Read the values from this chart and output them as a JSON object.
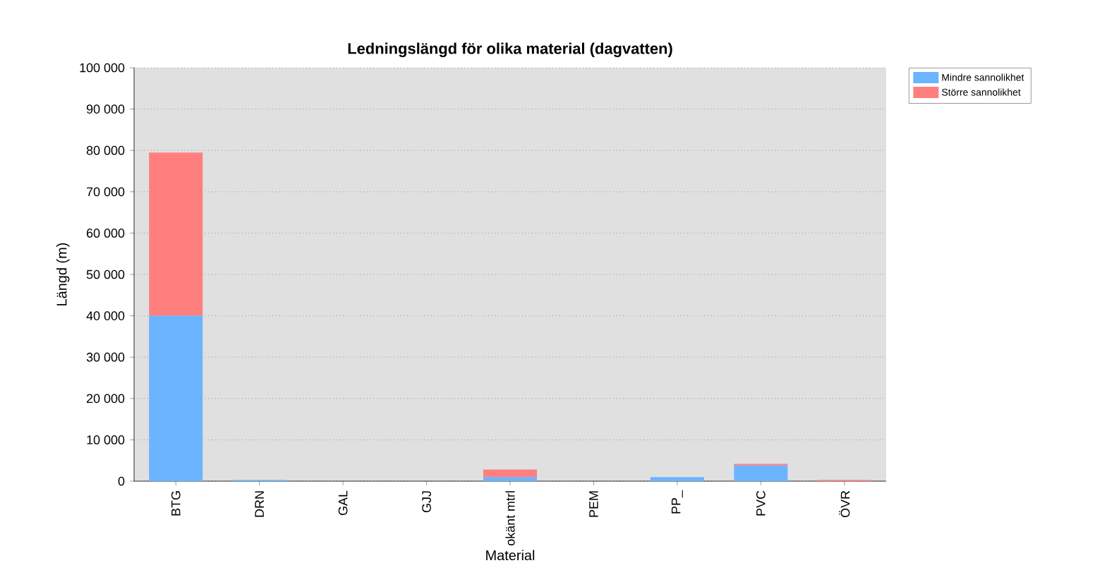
{
  "chart_data": {
    "type": "bar",
    "title": "Ledningslängd för olika material (dagvatten)",
    "xlabel": "Material",
    "ylabel": "Längd (m)",
    "stacked": true,
    "grid": "y",
    "legend": "top right",
    "categories": [
      "BTG",
      "DRN",
      "GAL",
      "GJJ",
      "okänt mtrl",
      "PEM",
      "PP_",
      "PVC",
      "ÖVR"
    ],
    "series": [
      {
        "name": "Mindre sannolikhet",
        "color": "#6cb4ff",
        "values": [
          40000,
          300,
          0,
          0,
          1000,
          0,
          1000,
          3800,
          0
        ]
      },
      {
        "name": "Större sannolikhet",
        "color": "#ff7f7f",
        "values": [
          39500,
          0,
          0,
          0,
          1800,
          0,
          0,
          400,
          300
        ]
      }
    ],
    "ylim": [
      0,
      100000
    ],
    "yticks": [
      0,
      {
        "value": 10000,
        "label": "10 000"
      },
      {
        "value": 20000,
        "label": "20 000"
      },
      {
        "value": 30000,
        "label": "30 000"
      },
      {
        "value": 40000,
        "label": "40 000"
      },
      {
        "value": 50000,
        "label": "50 000"
      },
      {
        "value": 60000,
        "label": "60 000"
      },
      {
        "value": 70000,
        "label": "70 000"
      },
      {
        "value": 80000,
        "label": "80 000"
      },
      {
        "value": 90000,
        "label": "90 000"
      },
      {
        "value": 100000,
        "label": "100 000"
      }
    ]
  }
}
